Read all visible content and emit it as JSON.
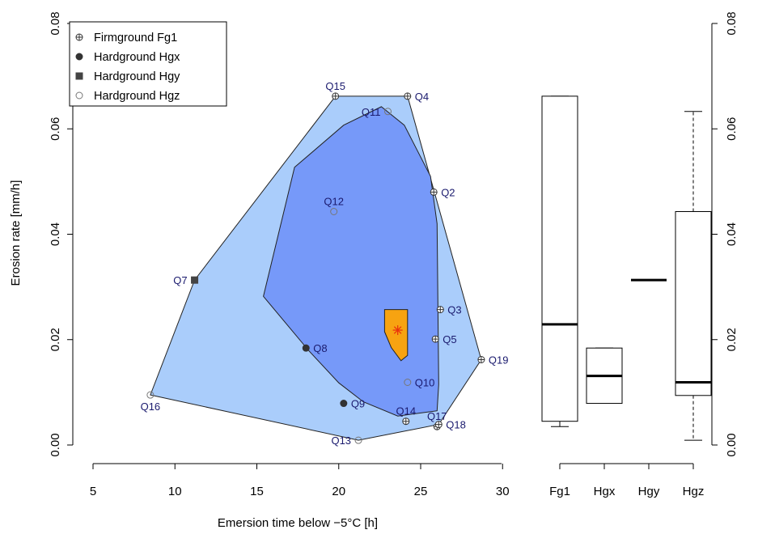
{
  "chart_data": [
    {
      "type": "scatter",
      "xlabel": "Emersion time below −5°C [h]",
      "ylabel": "Erosion rate [mm/h]",
      "xlim": [
        5,
        30
      ],
      "ylim": [
        0,
        0.08
      ],
      "xticks": [
        "5",
        "10",
        "15",
        "20",
        "25",
        "30"
      ],
      "yticks": [
        "0.00",
        "0.02",
        "0.04",
        "0.06",
        "0.08"
      ],
      "legend": {
        "placement": "top-left",
        "entries": [
          {
            "name": "Firmground Fg1",
            "symbol": "circle-plus"
          },
          {
            "name": "Hardground Hgx",
            "symbol": "filled-circle"
          },
          {
            "name": "Hardground Hgy",
            "symbol": "filled-square"
          },
          {
            "name": "Hardground Hgz",
            "symbol": "open-circle"
          }
        ]
      },
      "points": [
        {
          "label": "Q15",
          "x": 19.8,
          "y": 0.0662,
          "group": "Fg1",
          "label_pos": "top"
        },
        {
          "label": "Q4",
          "x": 24.2,
          "y": 0.0662,
          "group": "Fg1",
          "label_pos": "right"
        },
        {
          "label": "Q11",
          "x": 23.0,
          "y": 0.0633,
          "group": "Hgz",
          "label_pos": "left"
        },
        {
          "label": "Q2",
          "x": 25.8,
          "y": 0.048,
          "group": "Fg1",
          "label_pos": "right"
        },
        {
          "label": "Q12",
          "x": 19.7,
          "y": 0.0443,
          "group": "Hgz",
          "label_pos": "top"
        },
        {
          "label": "Q7",
          "x": 11.2,
          "y": 0.0313,
          "group": "Hgy",
          "label_pos": "left"
        },
        {
          "label": "Q3",
          "x": 26.2,
          "y": 0.0257,
          "group": "Fg1",
          "label_pos": "right"
        },
        {
          "label": "Q5",
          "x": 25.9,
          "y": 0.0201,
          "group": "Fg1",
          "label_pos": "right"
        },
        {
          "label": "Q8",
          "x": 18.0,
          "y": 0.0184,
          "group": "Hgx",
          "label_pos": "right"
        },
        {
          "label": "Q19",
          "x": 28.7,
          "y": 0.0162,
          "group": "Fg1",
          "label_pos": "right"
        },
        {
          "label": "Q10",
          "x": 24.2,
          "y": 0.0119,
          "group": "Hgz",
          "label_pos": "right"
        },
        {
          "label": "Q16",
          "x": 8.5,
          "y": 0.0095,
          "group": "Hgz",
          "label_pos": "bottom"
        },
        {
          "label": "Q9",
          "x": 20.3,
          "y": 0.0079,
          "group": "Hgx",
          "label_pos": "right"
        },
        {
          "label": "Q14",
          "x": 24.1,
          "y": 0.0045,
          "group": "Fg1",
          "label_pos": "top"
        },
        {
          "label": "Q17",
          "x": 26.0,
          "y": 0.0035,
          "group": "Fg1",
          "label_pos": "top"
        },
        {
          "label": "Q18",
          "x": 26.1,
          "y": 0.0039,
          "group": "Fg1",
          "label_pos": "right"
        },
        {
          "label": "Q13",
          "x": 21.2,
          "y": 0.0009,
          "group": "Hgz",
          "label_pos": "left"
        }
      ],
      "hull_outer": [
        [
          19.8,
          0.0662
        ],
        [
          24.2,
          0.0662
        ],
        [
          28.7,
          0.0162
        ],
        [
          26.1,
          0.0039
        ],
        [
          21.2,
          0.0009
        ],
        [
          8.5,
          0.0095
        ],
        [
          11.2,
          0.0313
        ]
      ],
      "hull_inner": [
        [
          17.3,
          0.0527
        ],
        [
          20.3,
          0.0607
        ],
        [
          22.6,
          0.0642
        ],
        [
          24.0,
          0.0607
        ],
        [
          25.6,
          0.051
        ],
        [
          26.0,
          0.042
        ],
        [
          26.1,
          0.0115
        ],
        [
          26.0,
          0.0065
        ],
        [
          23.6,
          0.0055
        ],
        [
          21.5,
          0.0082
        ],
        [
          20.0,
          0.0118
        ],
        [
          18.2,
          0.0178
        ],
        [
          15.4,
          0.0282
        ]
      ],
      "hull_core": [
        [
          22.8,
          0.0257
        ],
        [
          24.2,
          0.0257
        ],
        [
          24.2,
          0.017
        ],
        [
          23.8,
          0.016
        ],
        [
          23.2,
          0.0185
        ],
        [
          22.8,
          0.0215
        ]
      ],
      "centroid": {
        "x": 23.6,
        "y": 0.0218
      },
      "colors": {
        "outer": "#aacdfb",
        "inner": "#7699f9",
        "core": "#f7a311",
        "centroid": "#e8350c",
        "label": "#1a1a6e"
      }
    },
    {
      "type": "box",
      "categories": [
        "Fg1",
        "Hgx",
        "Hgy",
        "Hgz"
      ],
      "ylim": [
        0,
        0.08
      ],
      "yticks": [
        "0.00",
        "0.02",
        "0.04",
        "0.06",
        "0.08"
      ],
      "boxes": [
        {
          "name": "Fg1",
          "min": 0.0035,
          "q1": 0.0045,
          "median": 0.0229,
          "q3": 0.0662,
          "max": 0.0662
        },
        {
          "name": "Hgx",
          "min": 0.0079,
          "q1": 0.0079,
          "median": 0.0131,
          "q3": 0.0184,
          "max": 0.0184
        },
        {
          "name": "Hgy",
          "min": 0.0313,
          "q1": 0.0313,
          "median": 0.0313,
          "q3": 0.0313,
          "max": 0.0313
        },
        {
          "name": "Hgz",
          "min": 0.0009,
          "q1": 0.0094,
          "median": 0.0119,
          "q3": 0.0443,
          "max": 0.0633
        }
      ]
    }
  ]
}
